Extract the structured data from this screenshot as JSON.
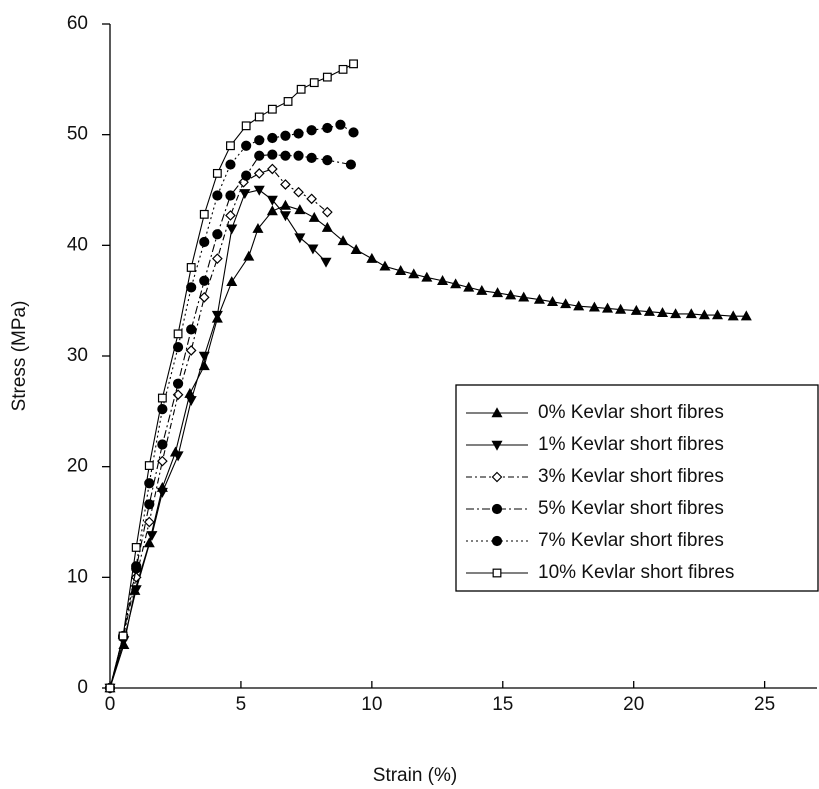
{
  "chart_data": {
    "type": "line",
    "x_label": "Strain (%)",
    "y_label": "Stress (MPa)",
    "xlim": [
      0,
      27
    ],
    "ylim": [
      0,
      60
    ],
    "xticks": [
      0,
      5,
      10,
      15,
      20,
      25
    ],
    "yticks": [
      0,
      10,
      20,
      30,
      40,
      50,
      60
    ],
    "legend_position": "right",
    "series": [
      {
        "name": "0% Kevlar short fibres",
        "color": "#000000",
        "marker": "triangle-up",
        "dash": "solid",
        "x": [
          0,
          0.53,
          0.95,
          1.5,
          2.0,
          2.5,
          3.05,
          3.6,
          4.1,
          4.65,
          5.3,
          5.65,
          6.2,
          6.7,
          7.25,
          7.8,
          8.3,
          8.9,
          9.4,
          10.0,
          10.5,
          11.1,
          11.6,
          12.1,
          12.7,
          13.2,
          13.7,
          14.2,
          14.8,
          15.3,
          15.8,
          16.4,
          16.9,
          17.4,
          17.9,
          18.5,
          19.0,
          19.5,
          20.1,
          20.6,
          21.1,
          21.6,
          22.2,
          22.7,
          23.2,
          23.8,
          24.3
        ],
        "values": [
          0,
          3.9,
          8.8,
          13.1,
          18.1,
          21.3,
          26.6,
          29.1,
          33.4,
          36.7,
          39.0,
          41.5,
          43.1,
          43.6,
          43.2,
          42.5,
          41.6,
          40.4,
          39.6,
          38.8,
          38.1,
          37.7,
          37.4,
          37.1,
          36.8,
          36.5,
          36.2,
          35.9,
          35.7,
          35.5,
          35.3,
          35.1,
          34.9,
          34.7,
          34.5,
          34.4,
          34.3,
          34.2,
          34.1,
          34.0,
          33.9,
          33.8,
          33.8,
          33.7,
          33.7,
          33.6,
          33.6
        ]
      },
      {
        "name": "1% Kevlar short fibres",
        "color": "#000000",
        "marker": "triangle-down",
        "dash": "solid",
        "x": [
          0,
          0.53,
          1.0,
          1.6,
          2.0,
          2.6,
          3.1,
          3.6,
          4.1,
          4.65,
          5.15,
          5.7,
          6.2,
          6.7,
          7.25,
          7.75,
          8.25
        ],
        "values": [
          0,
          4.3,
          8.9,
          13.8,
          17.7,
          21.0,
          26.0,
          30.0,
          33.7,
          41.5,
          44.7,
          45.0,
          44.1,
          42.7,
          40.7,
          39.7,
          38.5
        ]
      },
      {
        "name": "3% Kevlar short fibres",
        "color": "#000000",
        "marker": "diamond",
        "dash": "6,3,2,3",
        "x": [
          0,
          0.5,
          1.0,
          1.5,
          2.0,
          2.6,
          3.1,
          3.6,
          4.1,
          4.6,
          5.1,
          5.7,
          6.2,
          6.7,
          7.2,
          7.7,
          8.3
        ],
        "values": [
          0,
          4.5,
          10.0,
          15.0,
          20.5,
          26.5,
          30.5,
          35.3,
          38.8,
          42.7,
          45.7,
          46.5,
          46.9,
          45.5,
          44.8,
          44.2,
          43.0
        ]
      },
      {
        "name": "5% Kevlar short fibres",
        "color": "#000000",
        "marker": "circle",
        "dash": "8,3,2,3",
        "x": [
          0,
          0.5,
          1.0,
          1.5,
          2.0,
          2.6,
          3.1,
          3.6,
          4.1,
          4.6,
          5.2,
          5.7,
          6.2,
          6.7,
          7.2,
          7.7,
          8.3,
          9.2
        ],
        "values": [
          0,
          4.6,
          10.8,
          16.6,
          22.0,
          27.5,
          32.4,
          36.8,
          41.0,
          44.5,
          46.3,
          48.1,
          48.2,
          48.1,
          48.1,
          47.9,
          47.7,
          47.3
        ]
      },
      {
        "name": "7% Kevlar short fibres",
        "color": "#000000",
        "marker": "circle",
        "dash": "2,3",
        "x": [
          0,
          0.5,
          1.0,
          1.5,
          2.0,
          2.6,
          3.1,
          3.6,
          4.1,
          4.6,
          5.2,
          5.7,
          6.2,
          6.7,
          7.2,
          7.7,
          8.3,
          8.8,
          9.3
        ],
        "values": [
          0,
          4.7,
          11.0,
          18.5,
          25.2,
          30.8,
          36.2,
          40.3,
          44.5,
          47.3,
          49.0,
          49.5,
          49.7,
          49.9,
          50.1,
          50.4,
          50.6,
          50.9,
          50.2
        ]
      },
      {
        "name": "10% Kevlar short fibres",
        "color": "#000000",
        "marker": "square",
        "dash": "solid",
        "x": [
          0,
          0.5,
          1.0,
          1.5,
          2.0,
          2.6,
          3.1,
          3.6,
          4.1,
          4.6,
          5.2,
          5.7,
          6.2,
          6.8,
          7.3,
          7.8,
          8.3,
          8.9,
          9.3
        ],
        "values": [
          0,
          4.7,
          12.7,
          20.1,
          26.2,
          32.0,
          38.0,
          42.8,
          46.5,
          49.0,
          50.8,
          51.6,
          52.3,
          53.0,
          54.1,
          54.7,
          55.2,
          55.9,
          56.4
        ]
      }
    ]
  }
}
